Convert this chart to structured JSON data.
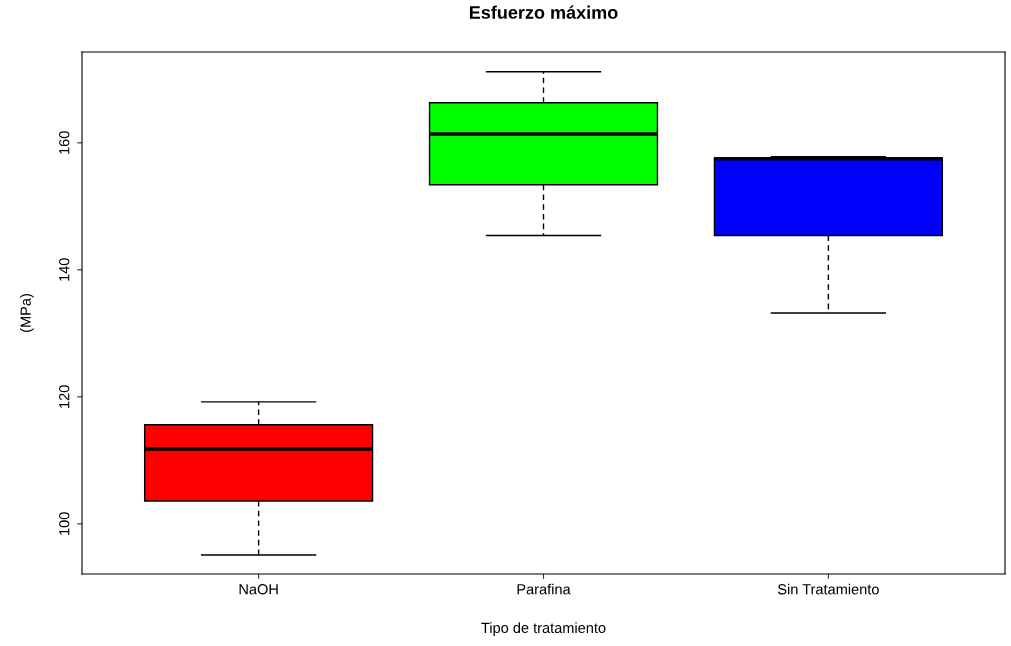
{
  "chart_data": {
    "type": "box",
    "title": "Esfuerzo máximo",
    "xlabel": "Tipo de tratamiento",
    "ylabel": "(MPa)",
    "categories": [
      "NaOH",
      "Parafina",
      "Sin Tratamiento"
    ],
    "colors": [
      "#ff0000",
      "#00ff00",
      "#0000ff"
    ],
    "boxes": [
      {
        "low": 95.1,
        "q1": 103.6,
        "median": 111.8,
        "q3": 115.6,
        "high": 119.2
      },
      {
        "low": 145.4,
        "q1": 153.4,
        "median": 161.4,
        "q3": 166.3,
        "high": 171.2
      },
      {
        "low": 133.2,
        "q1": 145.4,
        "median": 157.5,
        "q3": 157.6,
        "high": 157.8
      }
    ],
    "ylim": [
      92.1,
      174.3
    ],
    "yticks": [
      100,
      120,
      140,
      160
    ],
    "grid": false,
    "legend": false
  }
}
